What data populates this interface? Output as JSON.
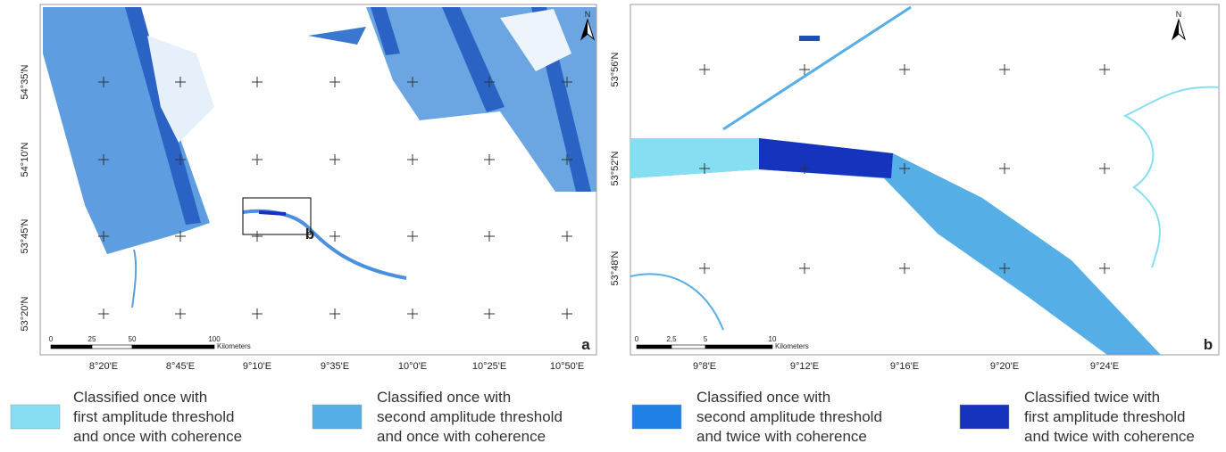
{
  "panels": [
    {
      "label": "a",
      "inset_label": "b",
      "north": "N",
      "x_labels": [
        "8°20'E",
        "8°45'E",
        "9°10'E",
        "9°35'E",
        "10°0'E",
        "10°25'E",
        "10°50'E"
      ],
      "y_labels": [
        "54°35'N",
        "54°10'N",
        "53°45'N",
        "53°20'N"
      ],
      "scale": {
        "ticks": [
          "0",
          "25",
          "50",
          "100"
        ],
        "unit": "Kilometers"
      }
    },
    {
      "label": "b",
      "north": "N",
      "x_labels": [
        "9°8'E",
        "9°12'E",
        "9°16'E",
        "9°20'E",
        "9°24'E"
      ],
      "y_labels": [
        "53°56'N",
        "53°52'N",
        "53°48'N"
      ],
      "scale": {
        "ticks": [
          "0",
          "2,5",
          "5",
          "10"
        ],
        "unit": "Kilometers"
      }
    }
  ],
  "legend": [
    {
      "lines": [
        "Classified once with",
        "first amplitude threshold",
        "and once with coherence"
      ],
      "color": "#86def2"
    },
    {
      "lines": [
        "Classified once with",
        "second amplitude threshold",
        "and once with coherence"
      ],
      "color": "#55aee6"
    },
    {
      "lines": [
        "Classified once with",
        "second amplitude threshold",
        "and twice with coherence"
      ],
      "color": "#1f80e6"
    },
    {
      "lines": [
        "Classified twice with",
        "first amplitude threshold",
        "and twice with coherence"
      ],
      "color": "#1633bd"
    }
  ]
}
